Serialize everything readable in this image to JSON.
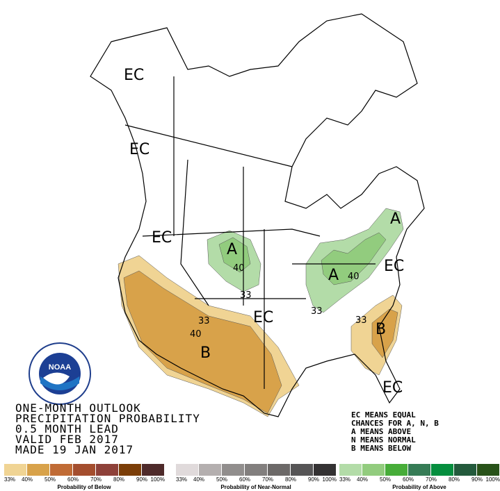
{
  "title_lines": [
    "ONE-MONTH OUTLOOK",
    "PRECIPITATION PROBABILITY",
    "0.5 MONTH LEAD",
    "VALID FEB 2017",
    "MADE 19 JAN 2017"
  ],
  "key_lines": [
    "EC MEANS EQUAL",
    "CHANCES FOR A, N, B",
    "A MEANS ABOVE",
    "N MEANS NORMAL",
    "B MEANS BELOW"
  ],
  "logo_text": "NOAA",
  "map_labels": [
    {
      "text": "EC",
      "region": "alaska"
    },
    {
      "text": "EC",
      "region": "british-columbia-coast"
    },
    {
      "text": "EC",
      "region": "pacific-northwest"
    },
    {
      "text": "A",
      "region": "north-dakota"
    },
    {
      "text": "40",
      "region": "north-dakota"
    },
    {
      "text": "33",
      "region": "south-dakota"
    },
    {
      "text": "EC",
      "region": "central-plains"
    },
    {
      "text": "33",
      "region": "southwest"
    },
    {
      "text": "40",
      "region": "southwest"
    },
    {
      "text": "B",
      "region": "new-mexico"
    },
    {
      "text": "A",
      "region": "great-lakes"
    },
    {
      "text": "40",
      "region": "great-lakes"
    },
    {
      "text": "33",
      "region": "ohio-valley"
    },
    {
      "text": "A",
      "region": "new-england"
    },
    {
      "text": "EC",
      "region": "mid-atlantic"
    },
    {
      "text": "33",
      "region": "carolinas"
    },
    {
      "text": "B",
      "region": "southeast-coast"
    },
    {
      "text": "EC",
      "region": "florida"
    }
  ],
  "legends": [
    {
      "title": "Probability of Below",
      "ticks": [
        "33%",
        "40%",
        "50%",
        "60%",
        "70%",
        "80%",
        "90%",
        "100%"
      ],
      "colors": [
        "#f0d494",
        "#d8a24a",
        "#c06b35",
        "#a44e2e",
        "#8e4139",
        "#7b3e08",
        "#4e2a2a"
      ]
    },
    {
      "title": "Probability of Near-Normal",
      "ticks": [
        "33%",
        "40%",
        "50%",
        "60%",
        "70%",
        "80%",
        "90%",
        "100%"
      ],
      "colors": [
        "#e0dadb",
        "#b4afaf",
        "#918e8d",
        "#827f7e",
        "#6c6968",
        "#565556",
        "#343233"
      ]
    },
    {
      "title": "Probability of Above",
      "ticks": [
        "33%",
        "40%",
        "50%",
        "60%",
        "70%",
        "80%",
        "90%",
        "100%"
      ],
      "colors": [
        "#b3dca8",
        "#92cc7e",
        "#47ad39",
        "#367c56",
        "#058e3e",
        "#235a3c",
        "#285219"
      ]
    }
  ]
}
